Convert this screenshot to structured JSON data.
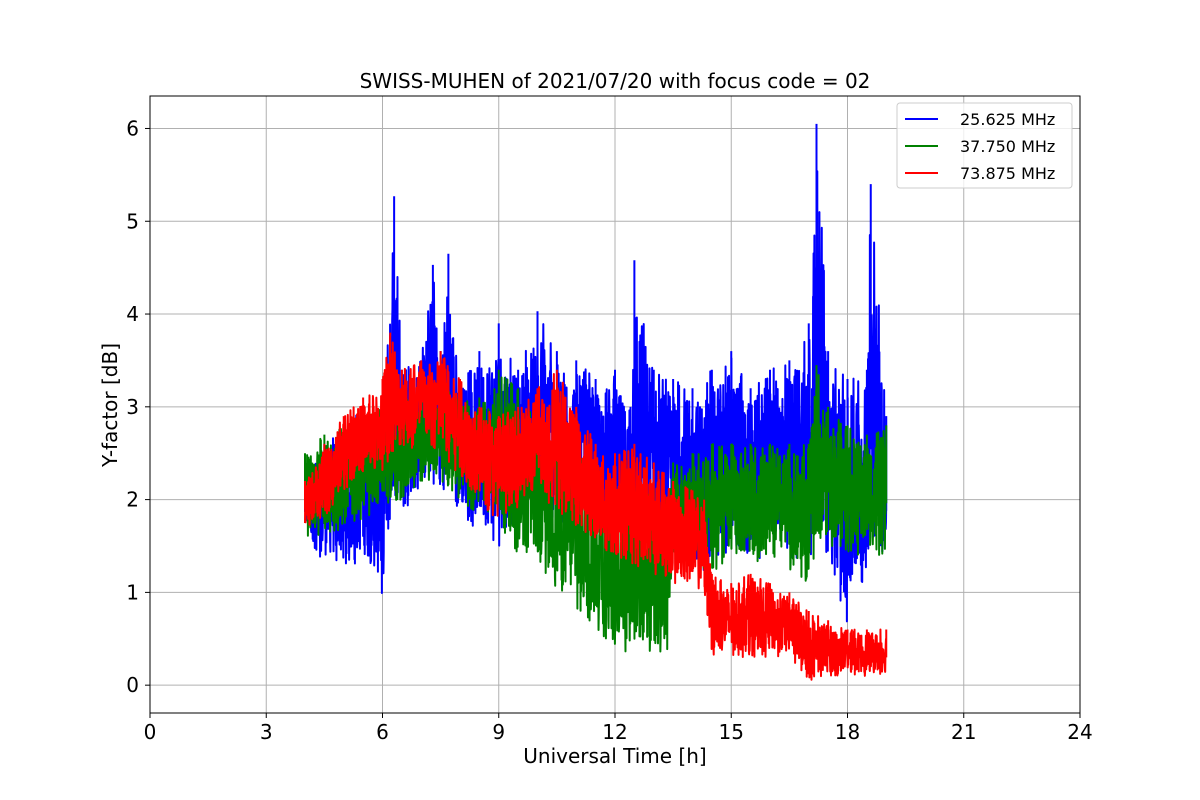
{
  "chart_data": {
    "type": "line",
    "title": "SWISS-MUHEN of 2021/07/20 with focus code = 02",
    "xlabel": "Universal Time [h]",
    "ylabel": "Y-factor [dB]",
    "xlim": [
      0,
      24
    ],
    "ylim": [
      -0.3,
      6.35
    ],
    "x_ticks": [
      0,
      3,
      6,
      9,
      12,
      15,
      18,
      21,
      24
    ],
    "x_tick_labels": [
      "0",
      "3",
      "6",
      "9",
      "12",
      "15",
      "18",
      "21",
      "24"
    ],
    "y_ticks": [
      0,
      1,
      2,
      3,
      4,
      5,
      6
    ],
    "y_tick_labels": [
      "0",
      "1",
      "2",
      "3",
      "4",
      "5",
      "6"
    ],
    "grid": true,
    "legend_position": "upper right",
    "series": [
      {
        "name": "25.625 MHz",
        "color": "#0000ff",
        "x": [
          4.0,
          4.5,
          5.0,
          5.5,
          6.0,
          6.3,
          6.5,
          7.0,
          7.3,
          7.5,
          7.7,
          8.0,
          8.5,
          9.0,
          9.5,
          10.0,
          10.5,
          11.0,
          11.5,
          12.0,
          12.4,
          12.5,
          13.0,
          13.5,
          14.0,
          14.5,
          15.0,
          15.5,
          16.0,
          16.5,
          17.0,
          17.2,
          17.5,
          18.0,
          18.5,
          18.6,
          19.0
        ],
        "low": [
          1.6,
          1.3,
          1.3,
          1.3,
          0.95,
          1.7,
          1.9,
          2.0,
          2.1,
          2.1,
          2.0,
          1.9,
          1.6,
          1.5,
          1.6,
          1.8,
          1.7,
          1.7,
          1.6,
          1.5,
          1.5,
          1.4,
          1.4,
          1.3,
          1.2,
          1.1,
          1.3,
          1.2,
          1.5,
          1.4,
          1.2,
          1.5,
          1.4,
          0.6,
          1.2,
          1.3,
          1.2
        ],
        "high": [
          2.4,
          2.6,
          2.8,
          3.0,
          3.1,
          5.27,
          3.4,
          3.5,
          4.53,
          3.6,
          4.65,
          3.3,
          3.6,
          3.9,
          3.4,
          4.03,
          3.6,
          3.5,
          3.3,
          3.4,
          3.0,
          4.58,
          3.4,
          3.3,
          3.2,
          3.4,
          3.6,
          3.2,
          3.4,
          3.5,
          3.9,
          6.05,
          3.6,
          3.3,
          3.4,
          5.4,
          2.9
        ]
      },
      {
        "name": "37.750 MHz",
        "color": "#008000",
        "x": [
          4.0,
          4.5,
          5.0,
          5.5,
          6.0,
          6.5,
          7.0,
          7.5,
          8.0,
          8.5,
          9.0,
          9.5,
          10.0,
          10.5,
          11.0,
          11.5,
          12.0,
          12.5,
          13.0,
          13.3,
          13.5,
          14.0,
          14.5,
          15.0,
          15.5,
          16.0,
          16.5,
          17.0,
          17.2,
          17.5,
          18.0,
          18.5,
          19.0
        ],
        "low": [
          1.6,
          1.6,
          1.7,
          1.8,
          1.9,
          2.0,
          2.2,
          2.2,
          2.0,
          1.8,
          1.7,
          1.4,
          1.3,
          1.0,
          0.8,
          0.6,
          0.4,
          0.3,
          0.3,
          0.1,
          1.3,
          1.2,
          1.2,
          1.3,
          1.3,
          1.4,
          1.2,
          1.1,
          1.5,
          1.5,
          1.4,
          1.4,
          1.4
        ],
        "high": [
          2.5,
          2.7,
          2.8,
          2.9,
          3.0,
          3.1,
          3.2,
          3.3,
          3.1,
          3.1,
          3.4,
          3.2,
          2.8,
          2.6,
          2.5,
          2.3,
          2.2,
          2.2,
          2.1,
          2.0,
          2.4,
          2.5,
          2.6,
          2.6,
          2.6,
          2.6,
          2.6,
          2.6,
          3.45,
          3.0,
          2.8,
          2.7,
          2.8
        ]
      },
      {
        "name": "73.875 MHz",
        "color": "#ff0000",
        "x": [
          4.0,
          4.5,
          5.0,
          5.5,
          6.0,
          6.2,
          6.5,
          7.0,
          7.5,
          8.0,
          8.5,
          9.0,
          9.5,
          10.0,
          10.5,
          11.0,
          11.5,
          12.0,
          12.5,
          13.0,
          13.5,
          14.0,
          14.3,
          14.5,
          15.0,
          15.5,
          16.0,
          16.5,
          17.0,
          17.5,
          18.0,
          18.5,
          19.0
        ],
        "low": [
          1.7,
          1.8,
          2.1,
          2.3,
          2.3,
          2.4,
          2.5,
          2.6,
          2.5,
          2.2,
          1.9,
          1.8,
          1.9,
          2.0,
          1.9,
          1.6,
          1.5,
          1.4,
          1.3,
          1.2,
          1.1,
          1.0,
          0.9,
          0.3,
          0.3,
          0.3,
          0.3,
          0.3,
          0.05,
          0.1,
          0.1,
          0.1,
          0.1
        ],
        "high": [
          2.2,
          2.6,
          2.9,
          3.1,
          3.3,
          3.8,
          3.4,
          3.5,
          3.6,
          3.3,
          3.0,
          2.9,
          3.0,
          3.2,
          3.4,
          3.0,
          2.6,
          2.5,
          2.6,
          2.4,
          2.2,
          2.1,
          2.0,
          1.2,
          1.1,
          1.2,
          1.1,
          1.0,
          0.8,
          0.7,
          0.6,
          0.6,
          0.6
        ]
      }
    ]
  }
}
